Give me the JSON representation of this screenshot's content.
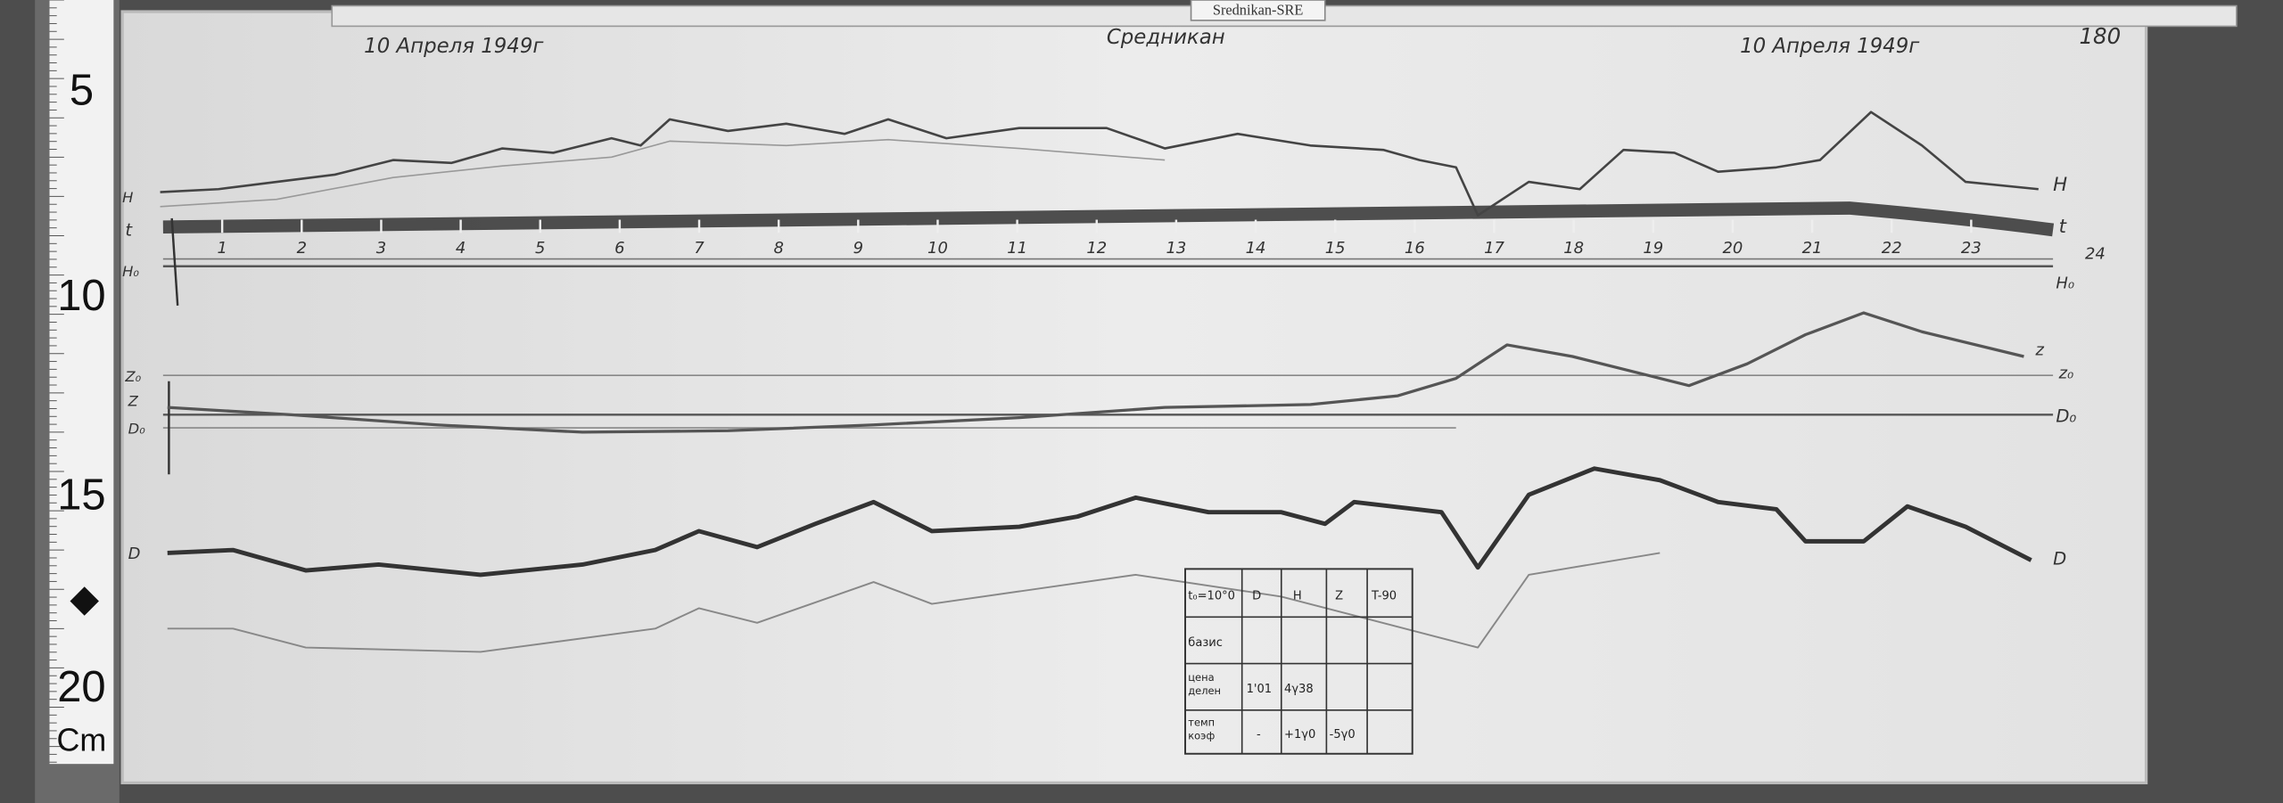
{
  "label_tag": "Srednikan-SRE",
  "header": {
    "date_left": "10 Апреля 1949г",
    "station": "Средникан",
    "date_right": "10 Апреля 1949г",
    "sheet_number": "180"
  },
  "ruler": {
    "marks": [
      "5",
      "10",
      "15",
      "20"
    ],
    "diamond": "◆",
    "unit": "Cm"
  },
  "trace_labels": {
    "left": {
      "H": "H",
      "t": "t",
      "H0": "H₀",
      "Z0": "Z₀",
      "Z": "Z",
      "D0": "D₀",
      "D": "D"
    },
    "right": {
      "H": "H",
      "t": "t",
      "end_hour": "24",
      "H0": "H₀",
      "Z": "z",
      "Z0": "z₀",
      "D0": "D₀",
      "D": "D"
    }
  },
  "hours": [
    "1",
    "2",
    "3",
    "4",
    "5",
    "6",
    "7",
    "8",
    "9",
    "10",
    "11",
    "12",
    "13",
    "14",
    "15",
    "16",
    "17",
    "18",
    "19",
    "20",
    "21",
    "22",
    "23"
  ],
  "table": {
    "header": [
      "t₀=10°0",
      "D",
      "H",
      "Z",
      "T-90"
    ],
    "rows": [
      [
        "базис",
        "",
        "",
        "",
        ""
      ],
      [
        "цена делен",
        "1'01",
        "4γ38",
        "",
        ""
      ],
      [
        "темп коэф",
        "-",
        "+1γ0",
        "-5γ0",
        ""
      ]
    ]
  }
}
